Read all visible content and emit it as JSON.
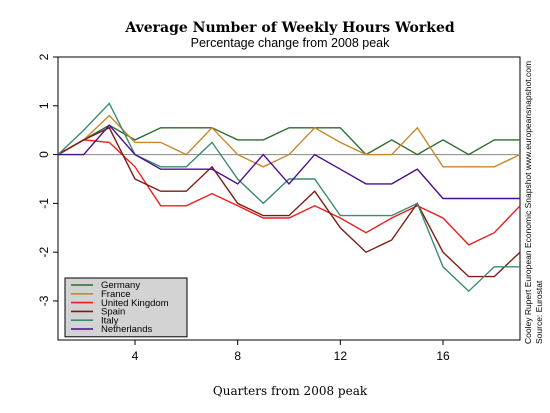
{
  "chart_data": {
    "type": "line",
    "title": "Average Number of Weekly Hours Worked",
    "subtitle": "Percentage change from 2008 peak",
    "xlabel": "Quarters from 2008 peak",
    "ylabel": "",
    "xlim": [
      1,
      19
    ],
    "ylim": [
      -3.8,
      2.0
    ],
    "xticks": [
      4,
      8,
      12,
      16
    ],
    "yticks": [
      2,
      1,
      0,
      -1,
      -2,
      -3
    ],
    "zero_line": true,
    "grid": false,
    "legend": "bottom-left",
    "x": [
      1,
      2,
      3,
      4,
      5,
      6,
      7,
      8,
      9,
      10,
      11,
      12,
      13,
      14,
      15,
      16,
      17,
      18,
      19
    ],
    "series": [
      {
        "name": "Germany",
        "color": "#2e6b2e",
        "values": [
          0,
          0.3,
          0.6,
          0.3,
          0.55,
          0.55,
          0.55,
          0.3,
          0.3,
          0.55,
          0.55,
          0.55,
          0.0,
          0.3,
          0.0,
          0.3,
          0.0,
          0.3,
          0.3
        ]
      },
      {
        "name": "France",
        "color": "#c8872a",
        "values": [
          0,
          0.3,
          0.8,
          0.25,
          0.25,
          0.0,
          0.55,
          0.0,
          -0.25,
          0.0,
          0.55,
          0.25,
          0.0,
          0.0,
          0.55,
          -0.25,
          -0.25,
          -0.25,
          0.0
        ]
      },
      {
        "name": "United Kingdom",
        "color": "#e8201c",
        "values": [
          0,
          0.3,
          0.25,
          -0.25,
          -1.05,
          -1.05,
          -0.8,
          -1.05,
          -1.3,
          -1.3,
          -1.05,
          -1.3,
          -1.6,
          -1.3,
          -1.05,
          -1.3,
          -1.85,
          -1.6,
          -1.05
        ]
      },
      {
        "name": "Spain",
        "color": "#7a1e14",
        "values": [
          0,
          0.3,
          0.55,
          -0.5,
          -0.75,
          -0.75,
          -0.25,
          -1.0,
          -1.25,
          -1.25,
          -0.75,
          -1.5,
          -2.0,
          -1.75,
          -1.0,
          -2.0,
          -2.5,
          -2.5,
          -2.0
        ]
      },
      {
        "name": "Italy",
        "color": "#3a8a72",
        "values": [
          0,
          0.5,
          1.05,
          0.0,
          -0.25,
          -0.25,
          0.25,
          -0.5,
          -1.0,
          -0.5,
          -0.5,
          -1.25,
          -1.25,
          -1.25,
          -1.0,
          -2.3,
          -2.8,
          -2.3,
          -2.3
        ]
      },
      {
        "name": "Netherlands",
        "color": "#4b0e8e",
        "values": [
          0,
          0,
          0.6,
          0.0,
          -0.3,
          -0.3,
          -0.3,
          -0.6,
          0.0,
          -0.6,
          0.0,
          -0.3,
          -0.6,
          -0.6,
          -0.3,
          -0.9,
          -0.9,
          -0.9,
          -0.9
        ]
      }
    ],
    "side_note": "Cooley Rupert European Economic Snapshot  www.europeansnapshot.com",
    "source": "Source: Eurostat"
  }
}
